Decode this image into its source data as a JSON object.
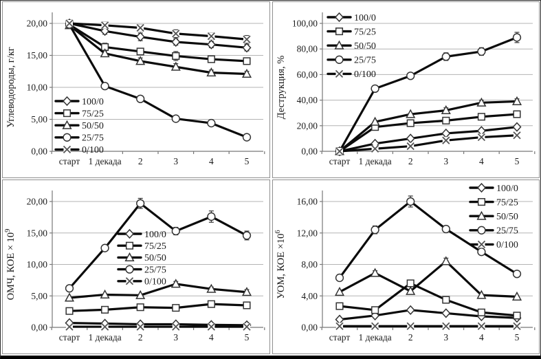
{
  "figure": {
    "series_line_color": "#0b0b0b",
    "grid_color": "#b3b3b3",
    "axis_color": "#777777",
    "marker_stroke": "#333333",
    "marker_fill": "#ffffff",
    "text_color": "#1a1a1a"
  },
  "chart_data": [
    {
      "id": "hydrocarbons",
      "type": "line",
      "title": "",
      "xlabel": "",
      "ylabel": "Углеводороды, г/кг",
      "ylabel_sup": "",
      "categories": [
        "старт",
        "1 декада",
        "2",
        "3",
        "4",
        "5"
      ],
      "ylim": [
        0,
        20
      ],
      "ytick_step": 5,
      "grid": true,
      "legend_pos": {
        "x": 77,
        "y": 144,
        "dy": 17.6
      },
      "series": [
        {
          "name": "100/0",
          "marker": "diamond",
          "values": [
            20.0,
            18.8,
            17.9,
            17.1,
            16.7,
            16.2
          ],
          "err": [
            0.5,
            0.5,
            0.6,
            0.5,
            0.5,
            0.5
          ]
        },
        {
          "name": "75/25",
          "marker": "square",
          "values": [
            19.8,
            16.3,
            15.6,
            14.9,
            14.4,
            14.1
          ],
          "err": [
            0.4,
            0.6,
            0.5,
            0.7,
            0.5,
            0.5
          ]
        },
        {
          "name": "50/50",
          "marker": "triangle",
          "values": [
            19.7,
            15.3,
            14.1,
            13.2,
            12.3,
            12.1
          ],
          "err": [
            0.4,
            0.5,
            0.5,
            0.5,
            0.4,
            0.4
          ]
        },
        {
          "name": "25/75",
          "marker": "circle",
          "values": [
            19.8,
            10.2,
            8.2,
            5.1,
            4.4,
            2.2
          ],
          "err": [
            0.3,
            0.3,
            0.3,
            0.3,
            0.3,
            0.3
          ]
        },
        {
          "name": "0/100",
          "marker": "x",
          "values": [
            20.0,
            19.7,
            19.3,
            18.4,
            18.0,
            17.5
          ],
          "err": [
            0.5,
            0.5,
            0.5,
            0.6,
            0.5,
            0.6
          ]
        }
      ]
    },
    {
      "id": "destruction",
      "type": "line",
      "title": "",
      "xlabel": "",
      "ylabel": "Деструкция, %",
      "ylabel_sup": "",
      "categories": [
        "старт",
        "1 декада",
        "2",
        "3",
        "4",
        "5"
      ],
      "ylim": [
        0,
        100
      ],
      "ytick_step": 20,
      "grid": true,
      "legend_pos": {
        "x": 80,
        "y": 22,
        "dy": 20.6
      },
      "series": [
        {
          "name": "100/0",
          "marker": "diamond",
          "values": [
            0,
            6,
            10,
            14,
            16,
            19
          ],
          "err": [
            0,
            0,
            0,
            0,
            0,
            0
          ]
        },
        {
          "name": "75/25",
          "marker": "square",
          "values": [
            0,
            19,
            22,
            24,
            27,
            29
          ],
          "err": [
            0,
            0,
            0,
            0,
            0,
            0
          ]
        },
        {
          "name": "50/50",
          "marker": "triangle",
          "values": [
            0,
            23,
            29,
            32,
            38,
            39
          ],
          "err": [
            0,
            0,
            0,
            2,
            2,
            2
          ]
        },
        {
          "name": "25/75",
          "marker": "circle",
          "values": [
            0,
            49,
            59,
            74,
            78,
            89
          ],
          "err": [
            0,
            2,
            2,
            3,
            3,
            4
          ]
        },
        {
          "name": "0/100",
          "marker": "x",
          "values": [
            0,
            2,
            4,
            8.5,
            11,
            12.5
          ],
          "err": [
            0,
            0,
            0,
            0,
            0,
            0
          ]
        }
      ]
    },
    {
      "id": "omch",
      "type": "line",
      "title": "",
      "xlabel": "",
      "ylabel": "ОМЧ, КОЕ × 10",
      "ylabel_sup": "9",
      "categories": [
        "старт",
        "1 декада",
        "2",
        "3",
        "4",
        "5"
      ],
      "ylim": [
        0,
        20
      ],
      "ytick_step": 5,
      "grid": true,
      "legend_pos": {
        "x": 168,
        "y": 78,
        "dy": 17.2
      },
      "series": [
        {
          "name": "100/0",
          "marker": "diamond",
          "values": [
            0.7,
            0.6,
            0.5,
            0.5,
            0.4,
            0.35
          ],
          "err": [
            0,
            0,
            0,
            0,
            0,
            0
          ]
        },
        {
          "name": "75/25",
          "marker": "square",
          "values": [
            2.6,
            2.8,
            3.2,
            3.1,
            3.7,
            3.5
          ],
          "err": [
            0,
            0,
            0,
            0,
            0,
            0
          ]
        },
        {
          "name": "50/50",
          "marker": "triangle",
          "values": [
            4.7,
            5.2,
            5.1,
            6.9,
            6.1,
            5.6
          ],
          "err": [
            0,
            0,
            0,
            0.4,
            0.3,
            0.4
          ]
        },
        {
          "name": "25/75",
          "marker": "circle",
          "values": [
            6.2,
            12.6,
            19.7,
            15.3,
            17.6,
            14.6
          ],
          "err": [
            0.4,
            0.3,
            0.8,
            0.6,
            0.9,
            0.7
          ]
        },
        {
          "name": "0/100",
          "marker": "x",
          "values": [
            0.1,
            0.1,
            0.1,
            0.1,
            0.1,
            0.1
          ],
          "err": [
            0,
            0,
            0,
            0,
            0,
            0
          ]
        }
      ]
    },
    {
      "id": "uom",
      "type": "line",
      "title": "",
      "xlabel": "",
      "ylabel": "УОМ, КОЕ ×10",
      "ylabel_sup": "6",
      "categories": [
        "старт",
        "1 декада",
        "2",
        "3",
        "4",
        "5"
      ],
      "ylim": [
        0,
        16
      ],
      "ytick_step": 4,
      "grid": true,
      "legend_pos": {
        "x": 287,
        "y": 11,
        "dy": 20.6
      },
      "series": [
        {
          "name": "100/0",
          "marker": "diamond",
          "values": [
            1.0,
            1.5,
            2.2,
            1.8,
            1.4,
            1.2
          ],
          "err": [
            0,
            0,
            0,
            0,
            0,
            0
          ]
        },
        {
          "name": "75/25",
          "marker": "square",
          "values": [
            2.7,
            2.2,
            5.6,
            3.5,
            1.9,
            1.5
          ],
          "err": [
            0,
            0,
            0,
            0,
            0,
            0
          ]
        },
        {
          "name": "50/50",
          "marker": "triangle",
          "values": [
            4.5,
            6.9,
            4.6,
            8.4,
            4.1,
            3.9
          ],
          "err": [
            0,
            0.3,
            0,
            0.4,
            0,
            0
          ]
        },
        {
          "name": "25/75",
          "marker": "circle",
          "values": [
            6.3,
            12.4,
            16.0,
            12.5,
            9.6,
            6.8
          ],
          "err": [
            0.4,
            0.5,
            0.7,
            0.4,
            0.4,
            0.3
          ]
        },
        {
          "name": "0/100",
          "marker": "x",
          "values": [
            0.15,
            0.15,
            0.15,
            0.15,
            0.15,
            0.15
          ],
          "err": [
            0,
            0,
            0,
            0,
            0,
            0
          ]
        }
      ]
    }
  ]
}
